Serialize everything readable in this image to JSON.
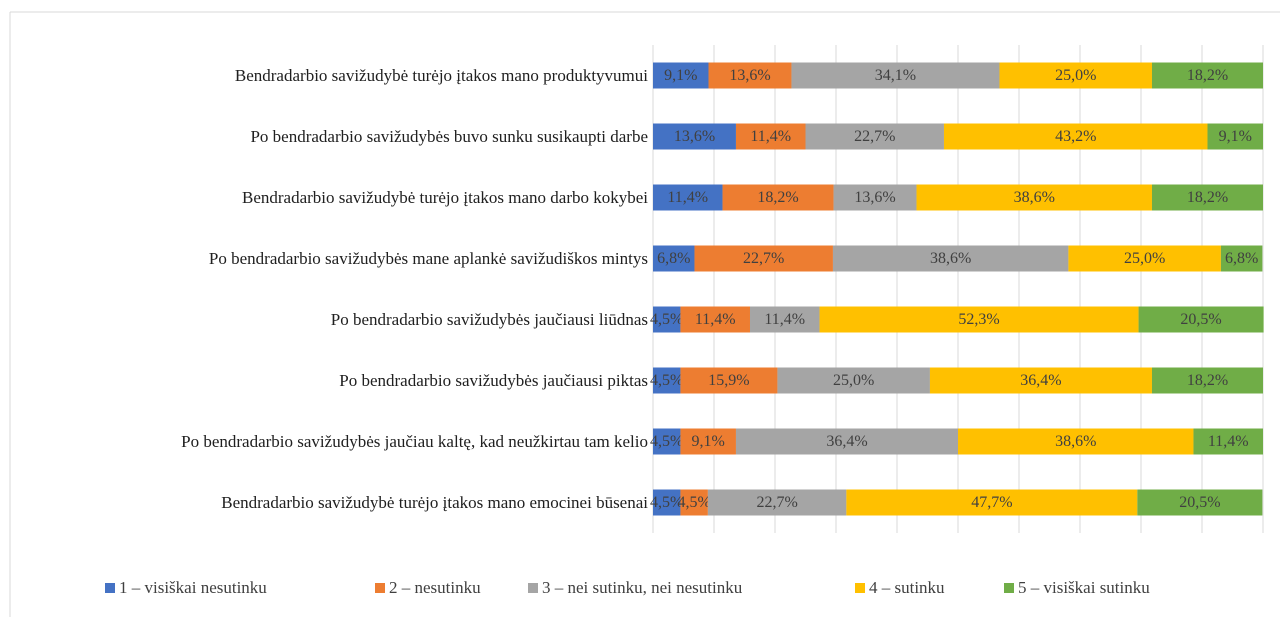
{
  "chart_data": {
    "type": "stacked-bar-horizontal",
    "categories": [
      "Bendradarbio savižudybė turėjo įtakos mano produktyvumui",
      "Po bendradarbio savižudybės buvo sunku susikaupti darbe",
      "Bendradarbio savižudybė turėjo įtakos mano darbo kokybei",
      "Po bendradarbio savižudybės mane aplankė savižudiškos mintys",
      "Po bendradarbio savižudybės jaučiausi liūdnas",
      "Po bendradarbio savižudybės jaučiausi piktas",
      "Po bendradarbio savižudybės jaučiau kaltę, kad neužkirtau tam kelio",
      "Bendradarbio savižudybė turėjo įtakos mano emocinei būsenai"
    ],
    "series": [
      {
        "name": "1 – visiškai nesutinku",
        "color": "#4472c4",
        "values": [
          9.1,
          13.6,
          11.4,
          6.8,
          4.5,
          4.5,
          4.5,
          4.5
        ],
        "value_labels": [
          "9,1%",
          "13,6%",
          "11,4%",
          "6,8%",
          "4,5%",
          "4,5%",
          "4,5%",
          "4,5%"
        ]
      },
      {
        "name": "2 – nesutinku",
        "color": "#ed7d31",
        "values": [
          13.6,
          11.4,
          18.2,
          22.7,
          11.4,
          15.9,
          9.1,
          4.5
        ],
        "value_labels": [
          "13,6%",
          "11,4%",
          "18,2%",
          "22,7%",
          "11,4%",
          "15,9%",
          "9,1%",
          "4,5%"
        ]
      },
      {
        "name": "3 – nei sutinku, nei nesutinku",
        "color": "#a5a5a5",
        "values": [
          34.1,
          22.7,
          13.6,
          38.6,
          11.4,
          25.0,
          36.4,
          22.7
        ],
        "value_labels": [
          "34,1%",
          "22,7%",
          "13,6%",
          "38,6%",
          "11,4%",
          "25,0%",
          "36,4%",
          "22,7%"
        ]
      },
      {
        "name": "4 – sutinku",
        "color": "#ffc000",
        "values": [
          25.0,
          43.2,
          38.6,
          25.0,
          52.3,
          36.4,
          38.6,
          47.7
        ],
        "value_labels": [
          "25,0%",
          "43,2%",
          "38,6%",
          "25,0%",
          "52,3%",
          "36,4%",
          "38,6%",
          "47,7%"
        ]
      },
      {
        "name": "5 – visiškai sutinku",
        "color": "#70ad47",
        "values": [
          18.2,
          9.1,
          18.2,
          6.8,
          20.5,
          18.2,
          11.4,
          20.5
        ],
        "value_labels": [
          "18,2%",
          "9,1%",
          "18,2%",
          "6,8%",
          "20,5%",
          "18,2%",
          "11,4%",
          "20,5%"
        ]
      }
    ],
    "xlim": [
      0,
      100
    ],
    "xticks": [
      0,
      10,
      20,
      30,
      40,
      50,
      60,
      70,
      80,
      90,
      100
    ],
    "grid": true,
    "legend": "bottom"
  }
}
